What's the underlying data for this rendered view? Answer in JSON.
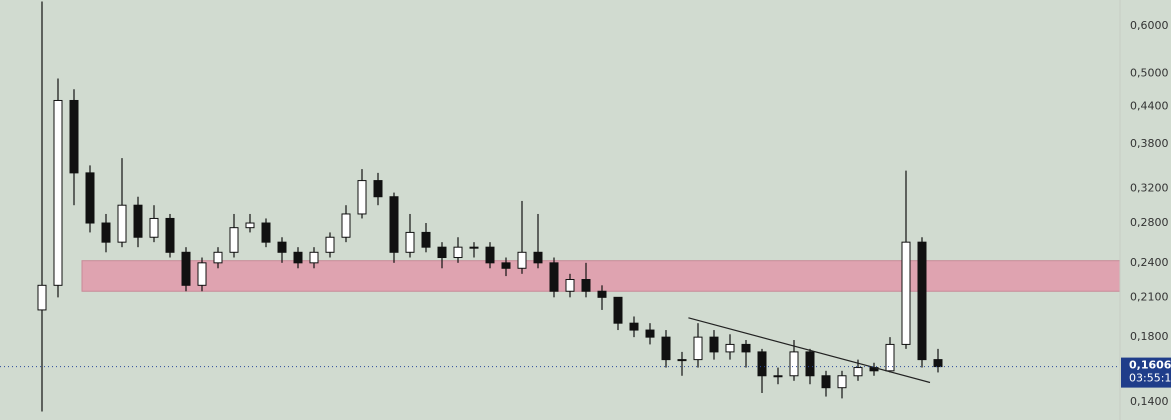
{
  "chart_data": {
    "type": "candlestick",
    "log_scale": true,
    "ylim": [
      0.1306,
      0.664
    ],
    "yticks": [
      {
        "value": 0.14,
        "label": "0,1400"
      },
      {
        "value": 0.18,
        "label": "0,1800"
      },
      {
        "value": 0.21,
        "label": "0,2100"
      },
      {
        "value": 0.24,
        "label": "0,2400"
      },
      {
        "value": 0.28,
        "label": "0,2800"
      },
      {
        "value": 0.32,
        "label": "0,3200"
      },
      {
        "value": 0.38,
        "label": "0,3800"
      },
      {
        "value": 0.44,
        "label": "0,4400"
      },
      {
        "value": 0.5,
        "label": "0,5000"
      },
      {
        "value": 0.6,
        "label": "0,6000"
      }
    ],
    "up_color": "#ffffff",
    "down_color": "#111111",
    "wick_color": "#111111",
    "open": [
      0.2,
      0.22,
      0.45,
      0.34,
      0.28,
      0.26,
      0.3,
      0.265,
      0.285,
      0.25,
      0.22,
      0.24,
      0.25,
      0.275,
      0.28,
      0.26,
      0.25,
      0.24,
      0.25,
      0.265,
      0.29,
      0.33,
      0.31,
      0.25,
      0.27,
      0.255,
      0.245,
      0.255,
      0.255,
      0.24,
      0.235,
      0.25,
      0.24,
      0.215,
      0.225,
      0.215,
      0.21,
      0.19,
      0.185,
      0.18,
      0.165,
      0.165,
      0.18,
      0.17,
      0.175,
      0.17,
      0.155,
      0.155,
      0.17,
      0.155,
      0.148,
      0.155,
      0.16,
      0.158,
      0.175,
      0.26,
      0.165
    ],
    "high": [
      0.66,
      0.49,
      0.47,
      0.35,
      0.29,
      0.36,
      0.31,
      0.3,
      0.29,
      0.255,
      0.245,
      0.255,
      0.29,
      0.29,
      0.285,
      0.265,
      0.255,
      0.255,
      0.27,
      0.3,
      0.345,
      0.34,
      0.315,
      0.29,
      0.28,
      0.26,
      0.265,
      0.26,
      0.26,
      0.245,
      0.305,
      0.29,
      0.245,
      0.23,
      0.24,
      0.22,
      0.21,
      0.195,
      0.19,
      0.185,
      0.17,
      0.19,
      0.185,
      0.182,
      0.178,
      0.172,
      0.16,
      0.178,
      0.172,
      0.158,
      0.158,
      0.165,
      0.163,
      0.18,
      0.343,
      0.265,
      0.172
    ],
    "low": [
      0.135,
      0.21,
      0.3,
      0.27,
      0.25,
      0.255,
      0.255,
      0.26,
      0.245,
      0.215,
      0.215,
      0.235,
      0.245,
      0.27,
      0.255,
      0.24,
      0.235,
      0.235,
      0.245,
      0.26,
      0.285,
      0.3,
      0.24,
      0.245,
      0.25,
      0.235,
      0.24,
      0.245,
      0.235,
      0.228,
      0.23,
      0.235,
      0.21,
      0.21,
      0.21,
      0.2,
      0.185,
      0.18,
      0.175,
      0.16,
      0.155,
      0.16,
      0.165,
      0.165,
      0.16,
      0.145,
      0.15,
      0.152,
      0.15,
      0.143,
      0.142,
      0.152,
      0.155,
      0.157,
      0.172,
      0.16,
      0.157
    ],
    "close": [
      0.22,
      0.45,
      0.34,
      0.28,
      0.26,
      0.3,
      0.265,
      0.285,
      0.25,
      0.22,
      0.24,
      0.25,
      0.275,
      0.28,
      0.26,
      0.25,
      0.24,
      0.25,
      0.265,
      0.29,
      0.33,
      0.31,
      0.25,
      0.27,
      0.255,
      0.245,
      0.255,
      0.255,
      0.24,
      0.235,
      0.25,
      0.24,
      0.215,
      0.225,
      0.215,
      0.21,
      0.19,
      0.185,
      0.18,
      0.165,
      0.165,
      0.18,
      0.17,
      0.175,
      0.17,
      0.155,
      0.155,
      0.17,
      0.155,
      0.148,
      0.155,
      0.16,
      0.158,
      0.175,
      0.26,
      0.165,
      0.1606
    ],
    "zone": {
      "low": 0.215,
      "high": 0.242,
      "start": 2.5,
      "color": "#dfa3b0"
    },
    "trendline": {
      "x": [
        40.4,
        55.5
      ],
      "y": [
        0.194,
        0.151
      ]
    },
    "last_price": {
      "value": 0.1606,
      "label": "0,1606"
    },
    "countdown": "03:55:1",
    "price_label_color": "#1f3d8a"
  }
}
